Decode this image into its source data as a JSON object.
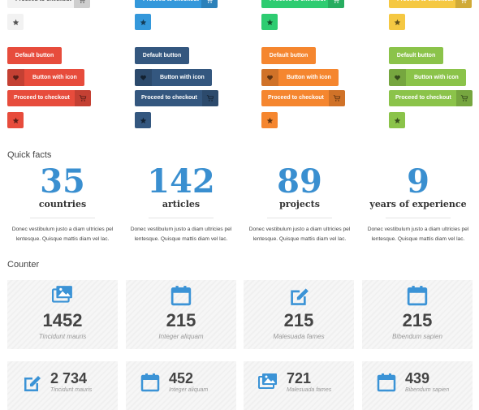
{
  "button_columns": [
    {
      "color": "#f2f2f2",
      "text_color": "#555555",
      "top_checkout": "Proceed to checkout"
    },
    {
      "color": "#3498db",
      "text_color": "#ffffff",
      "top_checkout": "Proceed to checkout"
    },
    {
      "color": "#2ecc71",
      "text_color": "#ffffff",
      "top_checkout": "Proceed to checkout"
    },
    {
      "color": "#f5c842",
      "text_color": "#ffffff",
      "top_checkout": "Proceed to checkout"
    }
  ],
  "button_sets": [
    {
      "color": "#e74c3c",
      "default": "Default button",
      "with_icon": "Button with icon",
      "checkout": "Proceed to checkout"
    },
    {
      "color": "#34577f",
      "default": "Default button",
      "with_icon": "Button with icon",
      "checkout": "Proceed to checkout"
    },
    {
      "color": "#f5862f",
      "default": "Default button",
      "with_icon": "Button with icon",
      "checkout": "Proceed to checkout"
    },
    {
      "color": "#8bc34a",
      "default": "Default button",
      "with_icon": "Button with icon",
      "checkout": "Proceed to checkout"
    }
  ],
  "quick_facts": {
    "heading": "Quick facts",
    "items": [
      {
        "number": 35,
        "label": "countries",
        "text": "Donec vestibulum justo a diam ultricies pel lentesque. Quisque mattis diam vel lac."
      },
      {
        "number": 142,
        "label": "articles",
        "text": "Donec vestibulum justo a diam ultricies pel lentesque. Quisque mattis diam vel lac."
      },
      {
        "number": 89,
        "label": "projects",
        "text": "Donec vestibulum justo a diam ultricies pel lentesque. Quisque mattis diam vel lac."
      },
      {
        "number": 9,
        "label": "years of experience",
        "text": "Donec vestibulum justo a diam ultricies pel lentesque. Quisque mattis diam vel lac."
      }
    ]
  },
  "counter": {
    "heading": "Counter",
    "boxes": [
      {
        "number": 1452,
        "caption": "Tincidunt mauris"
      },
      {
        "number": 215,
        "caption": "Integer aliquam"
      },
      {
        "number": 215,
        "caption": "Malesuada fames"
      },
      {
        "number": 215,
        "caption": "Bibendum sapien"
      }
    ],
    "inline_boxes": [
      {
        "number": "2 734",
        "caption": "Tincidunt mauris"
      },
      {
        "number": 452,
        "caption": "Integer aliquam"
      },
      {
        "number": 721,
        "caption": "Malesuada fames"
      },
      {
        "number": 439,
        "caption": "Bibendum sapien"
      }
    ]
  }
}
